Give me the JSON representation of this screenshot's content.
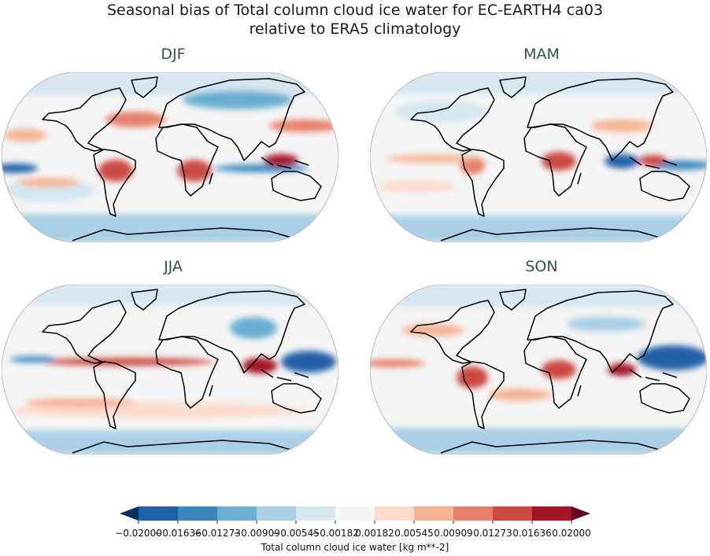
{
  "title_line1": "Seasonal bias of Total column cloud ice water for EC-EARTH4 ca03",
  "title_line2": "relative to ERA5 climatology",
  "panels": [
    {
      "title": "DJF"
    },
    {
      "title": "MAM"
    },
    {
      "title": "JJA"
    },
    {
      "title": "SON"
    }
  ],
  "colorbar": {
    "label": "Total column cloud ice water [kg m**-2]",
    "ticks": [
      "−0.02000",
      "−0.01636",
      "−0.01273",
      "−0.00909",
      "−0.00545",
      "−0.00182",
      "0.00182",
      "0.00545",
      "0.00909",
      "0.01273",
      "0.01636",
      "0.02000"
    ],
    "colors": [
      "#053061",
      "#2060a8",
      "#3a87c0",
      "#6aaed3",
      "#a9d0e5",
      "#d6e7f0",
      "#f5f5f5",
      "#fcdccc",
      "#f6b394",
      "#e7806a",
      "#cc4a42",
      "#a51425",
      "#67001f"
    ],
    "extend": "both"
  }
}
